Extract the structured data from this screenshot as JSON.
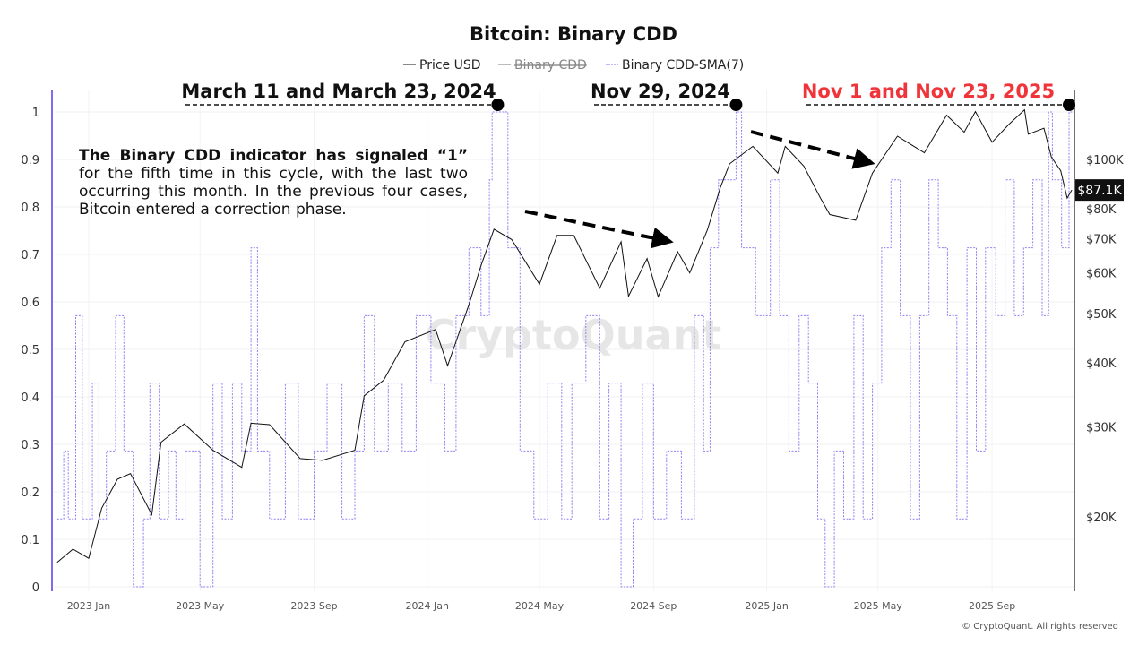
{
  "chart_data": {
    "type": "line",
    "title": "Bitcoin: Binary CDD",
    "legend": {
      "position": "top",
      "items": [
        {
          "name": "Price USD",
          "color": "#111111",
          "style": "solid"
        },
        {
          "name": "Binary CDD",
          "color": "#777777",
          "style": "solid",
          "hidden": true
        },
        {
          "name": "Binary CDD-SMA(7)",
          "color": "#7b6cf0",
          "style": "dashed"
        }
      ]
    },
    "x_ticks": [
      "2023 Jan",
      "2023 May",
      "2023 Sep",
      "2024 Jan",
      "2024 May",
      "2024 Sep",
      "2025 Jan",
      "2025 May",
      "2025 Sep"
    ],
    "x_tick_dates": [
      "2023-01-01",
      "2023-05-01",
      "2023-09-01",
      "2024-01-01",
      "2024-05-01",
      "2024-09-01",
      "2025-01-01",
      "2025-05-01",
      "2025-09-01"
    ],
    "xlim": [
      "2022-11-28",
      "2025-11-28"
    ],
    "y_left": {
      "ticks": [
        "0",
        "0.1",
        "0.2",
        "0.3",
        "0.4",
        "0.5",
        "0.6",
        "0.7",
        "0.8",
        "0.9",
        "1"
      ],
      "ylim": [
        0,
        1
      ]
    },
    "y_right": {
      "scale": "log",
      "ticks": [
        "$20K",
        "$30K",
        "$40K",
        "$50K",
        "$60K",
        "$70K",
        "$80K",
        "$100K"
      ],
      "tick_values": [
        20000,
        30000,
        40000,
        50000,
        60000,
        70000,
        80000,
        100000
      ],
      "current_label": "$87.1K",
      "current_value": 87100
    },
    "grid": true,
    "series": [
      {
        "name": "Price USD",
        "axis": "right",
        "unit": "USD thousands",
        "points": [
          [
            "2022-11-28",
            16.3
          ],
          [
            "2022-12-15",
            17.3
          ],
          [
            "2023-01-01",
            16.6
          ],
          [
            "2023-01-15",
            20.8
          ],
          [
            "2023-02-01",
            23.7
          ],
          [
            "2023-02-15",
            24.3
          ],
          [
            "2023-03-10",
            20.2
          ],
          [
            "2023-03-20",
            28
          ],
          [
            "2023-04-14",
            30.4
          ],
          [
            "2023-05-15",
            27
          ],
          [
            "2023-06-15",
            25
          ],
          [
            "2023-06-25",
            30.5
          ],
          [
            "2023-07-15",
            30.3
          ],
          [
            "2023-08-17",
            26
          ],
          [
            "2023-09-10",
            25.8
          ],
          [
            "2023-10-15",
            27
          ],
          [
            "2023-10-25",
            34.5
          ],
          [
            "2023-11-15",
            37
          ],
          [
            "2023-12-08",
            44
          ],
          [
            "2024-01-10",
            46.5
          ],
          [
            "2024-01-23",
            39.5
          ],
          [
            "2024-02-15",
            52
          ],
          [
            "2024-02-28",
            62
          ],
          [
            "2024-03-13",
            73
          ],
          [
            "2024-04-01",
            69.7
          ],
          [
            "2024-05-01",
            57
          ],
          [
            "2024-05-20",
            71
          ],
          [
            "2024-06-07",
            71
          ],
          [
            "2024-07-05",
            56
          ],
          [
            "2024-07-28",
            69
          ],
          [
            "2024-08-05",
            54
          ],
          [
            "2024-08-25",
            64
          ],
          [
            "2024-09-06",
            53.9
          ],
          [
            "2024-09-27",
            66
          ],
          [
            "2024-10-10",
            60
          ],
          [
            "2024-10-29",
            72.7
          ],
          [
            "2024-11-12",
            88
          ],
          [
            "2024-11-22",
            98
          ],
          [
            "2024-12-17",
            106
          ],
          [
            "2025-01-13",
            94
          ],
          [
            "2025-01-21",
            106
          ],
          [
            "2025-02-10",
            97
          ],
          [
            "2025-02-28",
            84
          ],
          [
            "2025-03-10",
            78
          ],
          [
            "2025-04-07",
            76
          ],
          [
            "2025-04-25",
            94
          ],
          [
            "2025-05-22",
            111
          ],
          [
            "2025-06-20",
            103
          ],
          [
            "2025-07-14",
            122
          ],
          [
            "2025-08-02",
            113
          ],
          [
            "2025-08-14",
            124
          ],
          [
            "2025-09-01",
            108
          ],
          [
            "2025-09-19",
            117
          ],
          [
            "2025-10-06",
            125
          ],
          [
            "2025-10-10",
            112
          ],
          [
            "2025-10-27",
            115
          ],
          [
            "2025-11-04",
            101
          ],
          [
            "2025-11-14",
            95
          ],
          [
            "2025-11-21",
            84
          ],
          [
            "2025-11-26",
            87.1
          ]
        ]
      },
      {
        "name": "Binary CDD-SMA(7)",
        "axis": "left",
        "points": [
          [
            "2022-11-28",
            0.143
          ],
          [
            "2022-12-05",
            0.286
          ],
          [
            "2022-12-10",
            0.143
          ],
          [
            "2022-12-18",
            0.571
          ],
          [
            "2022-12-25",
            0.143
          ],
          [
            "2023-01-05",
            0.429
          ],
          [
            "2023-01-12",
            0.143
          ],
          [
            "2023-01-20",
            0.286
          ],
          [
            "2023-01-30",
            0.571
          ],
          [
            "2023-02-08",
            0.286
          ],
          [
            "2023-02-18",
            0
          ],
          [
            "2023-03-01",
            0.143
          ],
          [
            "2023-03-08",
            0.429
          ],
          [
            "2023-03-18",
            0.143
          ],
          [
            "2023-03-28",
            0.286
          ],
          [
            "2023-04-05",
            0.143
          ],
          [
            "2023-04-15",
            0.286
          ],
          [
            "2023-05-01",
            0
          ],
          [
            "2023-05-15",
            0.429
          ],
          [
            "2023-05-25",
            0.143
          ],
          [
            "2023-06-05",
            0.429
          ],
          [
            "2023-06-15",
            0.286
          ],
          [
            "2023-06-25",
            0.714
          ],
          [
            "2023-07-02",
            0.286
          ],
          [
            "2023-07-15",
            0.143
          ],
          [
            "2023-08-01",
            0.429
          ],
          [
            "2023-08-15",
            0.143
          ],
          [
            "2023-09-01",
            0.286
          ],
          [
            "2023-09-15",
            0.429
          ],
          [
            "2023-10-01",
            0.143
          ],
          [
            "2023-10-15",
            0.286
          ],
          [
            "2023-10-25",
            0.571
          ],
          [
            "2023-11-05",
            0.286
          ],
          [
            "2023-11-20",
            0.429
          ],
          [
            "2023-12-05",
            0.286
          ],
          [
            "2023-12-20",
            0.571
          ],
          [
            "2024-01-05",
            0.429
          ],
          [
            "2024-01-20",
            0.286
          ],
          [
            "2024-02-01",
            0.571
          ],
          [
            "2024-02-15",
            0.714
          ],
          [
            "2024-02-28",
            0.571
          ],
          [
            "2024-03-08",
            0.857
          ],
          [
            "2024-03-11",
            1
          ],
          [
            "2024-03-28",
            0.714
          ],
          [
            "2024-04-10",
            0.286
          ],
          [
            "2024-04-25",
            0.143
          ],
          [
            "2024-05-10",
            0.429
          ],
          [
            "2024-05-25",
            0.143
          ],
          [
            "2024-06-05",
            0.429
          ],
          [
            "2024-06-20",
            0.571
          ],
          [
            "2024-07-05",
            0.143
          ],
          [
            "2024-07-15",
            0.429
          ],
          [
            "2024-07-28",
            0
          ],
          [
            "2024-08-10",
            0.143
          ],
          [
            "2024-08-20",
            0.429
          ],
          [
            "2024-09-01",
            0.143
          ],
          [
            "2024-09-15",
            0.286
          ],
          [
            "2024-10-01",
            0.143
          ],
          [
            "2024-10-15",
            0.571
          ],
          [
            "2024-10-25",
            0.286
          ],
          [
            "2024-11-01",
            0.714
          ],
          [
            "2024-11-10",
            0.857
          ],
          [
            "2024-11-29",
            1
          ],
          [
            "2024-12-05",
            0.714
          ],
          [
            "2024-12-20",
            0.571
          ],
          [
            "2025-01-05",
            0.857
          ],
          [
            "2025-01-15",
            0.571
          ],
          [
            "2025-01-25",
            0.286
          ],
          [
            "2025-02-05",
            0.571
          ],
          [
            "2025-02-15",
            0.429
          ],
          [
            "2025-02-25",
            0.143
          ],
          [
            "2025-03-05",
            0
          ],
          [
            "2025-03-15",
            0.286
          ],
          [
            "2025-03-25",
            0.143
          ],
          [
            "2025-04-05",
            0.571
          ],
          [
            "2025-04-15",
            0.143
          ],
          [
            "2025-04-25",
            0.429
          ],
          [
            "2025-05-05",
            0.714
          ],
          [
            "2025-05-15",
            0.857
          ],
          [
            "2025-05-25",
            0.571
          ],
          [
            "2025-06-05",
            0.143
          ],
          [
            "2025-06-15",
            0.571
          ],
          [
            "2025-06-25",
            0.857
          ],
          [
            "2025-07-05",
            0.714
          ],
          [
            "2025-07-15",
            0.571
          ],
          [
            "2025-07-25",
            0.143
          ],
          [
            "2025-08-05",
            0.714
          ],
          [
            "2025-08-15",
            0.286
          ],
          [
            "2025-08-25",
            0.714
          ],
          [
            "2025-09-05",
            0.571
          ],
          [
            "2025-09-15",
            0.857
          ],
          [
            "2025-09-25",
            0.571
          ],
          [
            "2025-10-05",
            0.714
          ],
          [
            "2025-10-15",
            0.857
          ],
          [
            "2025-10-25",
            0.571
          ],
          [
            "2025-11-01",
            1
          ],
          [
            "2025-11-05",
            0.857
          ],
          [
            "2025-11-15",
            0.714
          ],
          [
            "2025-11-23",
            1
          ],
          [
            "2025-11-28",
            1
          ]
        ]
      }
    ],
    "annotations": [
      {
        "text": "March 11 and March 23, 2024",
        "date": "2024-03-17",
        "value": 1,
        "color": "#111111"
      },
      {
        "text": "Nov 29, 2024",
        "date": "2024-11-29",
        "value": 1,
        "color": "#111111"
      },
      {
        "text": "Nov 1 and Nov 23, 2025",
        "date": "2025-11-23",
        "value": 1,
        "color": "#f0353a"
      }
    ]
  },
  "note": {
    "bold": "The Binary CDD indicator has signaled “1”",
    "rest": " for the fifth time in this cycle, with the last two occurring this month. In the previous four cases, Bitcoin entered a correction phase."
  },
  "watermark": "CryptoQuant",
  "copyright": "© CryptoQuant. All rights reserved"
}
